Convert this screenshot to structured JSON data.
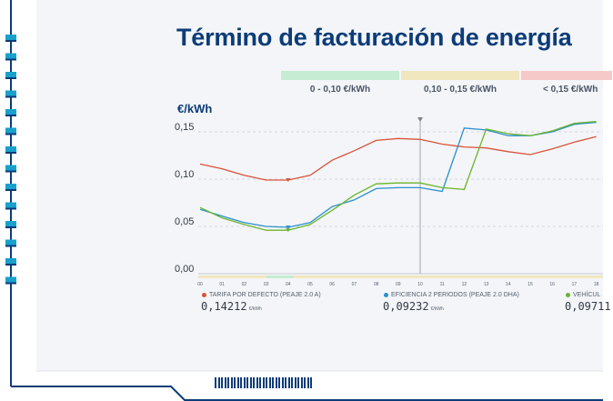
{
  "title": "Término de facturación de energía",
  "bands": [
    {
      "label": "0 - 0,10 €/kWh",
      "color": "#c6ecd4"
    },
    {
      "label": "0,10 - 0,15 €/kWh",
      "color": "#f1e7bf"
    },
    {
      "label": "< 0,15 €/kWh",
      "color": "#f6c9c9"
    }
  ],
  "colors": {
    "frame": "#0c3c78",
    "accent_cyan": "#1aa0cc",
    "tarifa": "#d9533a",
    "eficiencia": "#2b8fd0",
    "vehiculo": "#6bb52b"
  },
  "chart_data": {
    "type": "line",
    "ylabel": "€/kWh",
    "ylim": [
      0,
      0.155
    ],
    "yticks": [
      "0,00",
      "0,05",
      "0,10",
      "0,15"
    ],
    "x": [
      "00",
      "01",
      "02",
      "03",
      "04",
      "05",
      "06",
      "07",
      "08",
      "09",
      "10",
      "11",
      "12",
      "13",
      "14",
      "15",
      "16",
      "17",
      "18"
    ],
    "grid": true,
    "current_hour": "10",
    "series": [
      {
        "name": "TARIFA POR DEFECTO (PEAJE 2.0 A)",
        "values": [
          0.116,
          0.111,
          0.104,
          0.099,
          0.099,
          0.104,
          0.12,
          0.13,
          0.141,
          0.143,
          0.142,
          0.137,
          0.134,
          0.133,
          0.129,
          0.126,
          0.132,
          0.139,
          0.145
        ],
        "marker_hour": "04"
      },
      {
        "name": "EFICIENCIA 2 PERIODOS (PEAJE 2.0 DHA)",
        "values": [
          0.068,
          0.061,
          0.054,
          0.05,
          0.049,
          0.054,
          0.071,
          0.078,
          0.09,
          0.091,
          0.091,
          0.087,
          0.154,
          0.152,
          0.146,
          0.146,
          0.15,
          0.158,
          0.16
        ],
        "marker_hour": "04"
      },
      {
        "name": "VEHÍCULO",
        "values": [
          0.07,
          0.059,
          0.052,
          0.046,
          0.046,
          0.052,
          0.067,
          0.083,
          0.095,
          0.096,
          0.096,
          0.091,
          0.089,
          0.153,
          0.148,
          0.146,
          0.151,
          0.159,
          0.161
        ],
        "marker_hour": "04"
      }
    ]
  },
  "legend": [
    {
      "label": "TARIFA POR DEFECTO (PEAJE 2.0 A)",
      "value": "0,14212",
      "unit": "€/kWh"
    },
    {
      "label": "EFICIENCIA 2 PERIODOS (PEAJE 2.0 DHA)",
      "value": "0,09232",
      "unit": "€/kWh"
    },
    {
      "label": "VEHÍCUL",
      "value": "0,09711",
      "unit": ""
    }
  ]
}
